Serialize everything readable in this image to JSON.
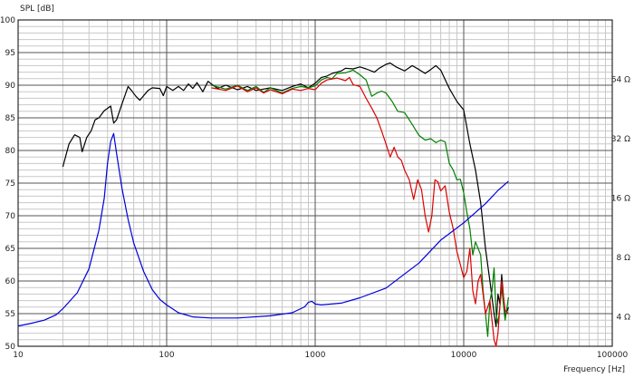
{
  "chart_data": {
    "type": "line",
    "ylabel": "SPL [dB]",
    "xlabel": "Frequency [Hz]",
    "xscale": "log",
    "xlim": [
      10,
      100000
    ],
    "ylim": [
      50,
      100
    ],
    "x_ticks": [
      {
        "value": 10,
        "label": "10"
      },
      {
        "value": 100,
        "label": "100"
      },
      {
        "value": 1000,
        "label": "1000"
      },
      {
        "value": 10000,
        "label": "10000"
      },
      {
        "value": 100000,
        "label": "100000"
      }
    ],
    "y_ticks": [
      50,
      55,
      60,
      65,
      70,
      75,
      80,
      85,
      90,
      95,
      100
    ],
    "y2_ticks": [
      {
        "value": 4,
        "label": "4 Ω"
      },
      {
        "value": 8,
        "label": "8 Ω"
      },
      {
        "value": 16,
        "label": "16 Ω"
      },
      {
        "value": 32,
        "label": "32 Ω"
      },
      {
        "value": 64,
        "label": "64 Ω"
      }
    ],
    "y2scale": "log",
    "y2lim": [
      2.84,
      128
    ],
    "grid": true,
    "series": [
      {
        "color": "#000000",
        "axis": "left",
        "points": [
          [
            20,
            77.5
          ],
          [
            22,
            81
          ],
          [
            24,
            82.4
          ],
          [
            26,
            82
          ],
          [
            27,
            79.8
          ],
          [
            29,
            82
          ],
          [
            31,
            83
          ],
          [
            33,
            84.7
          ],
          [
            35,
            85
          ],
          [
            38,
            86.1
          ],
          [
            42,
            86.8
          ],
          [
            44,
            84.2
          ],
          [
            46,
            84.7
          ],
          [
            50,
            87.1
          ],
          [
            55,
            89.8
          ],
          [
            58,
            89.2
          ],
          [
            62,
            88.3
          ],
          [
            66,
            87.7
          ],
          [
            70,
            88.4
          ],
          [
            75,
            89.2
          ],
          [
            80,
            89.6
          ],
          [
            90,
            89.5
          ],
          [
            95,
            88.4
          ],
          [
            100,
            89.8
          ],
          [
            110,
            89.2
          ],
          [
            120,
            89.8
          ],
          [
            130,
            89.2
          ],
          [
            140,
            90.2
          ],
          [
            150,
            89.5
          ],
          [
            160,
            90.4
          ],
          [
            175,
            89.0
          ],
          [
            190,
            90.6
          ],
          [
            200,
            90.2
          ],
          [
            220,
            89.5
          ],
          [
            250,
            90.0
          ],
          [
            300,
            89.3
          ],
          [
            350,
            89.8
          ],
          [
            400,
            89.2
          ],
          [
            500,
            89.6
          ],
          [
            600,
            89.2
          ],
          [
            700,
            89.8
          ],
          [
            800,
            90.2
          ],
          [
            900,
            89.6
          ],
          [
            1000,
            90.3
          ],
          [
            1100,
            91.2
          ],
          [
            1200,
            91.4
          ],
          [
            1300,
            91.8
          ],
          [
            1400,
            92.0
          ],
          [
            1500,
            92.2
          ],
          [
            1600,
            92.6
          ],
          [
            1800,
            92.5
          ],
          [
            2000,
            92.8
          ],
          [
            2200,
            92.5
          ],
          [
            2500,
            92.0
          ],
          [
            2700,
            92.6
          ],
          [
            3000,
            93.2
          ],
          [
            3200,
            93.4
          ],
          [
            3500,
            92.8
          ],
          [
            4000,
            92.2
          ],
          [
            4500,
            93.0
          ],
          [
            5000,
            92.4
          ],
          [
            5500,
            91.8
          ],
          [
            6000,
            92.4
          ],
          [
            6500,
            93.0
          ],
          [
            7000,
            92.3
          ],
          [
            8000,
            89.5
          ],
          [
            9000,
            87.5
          ],
          [
            10000,
            86.2
          ],
          [
            11000,
            81.0
          ],
          [
            12000,
            77.0
          ],
          [
            13000,
            72.0
          ],
          [
            14000,
            65.0
          ],
          [
            15000,
            60.0
          ],
          [
            16000,
            55.0
          ],
          [
            16500,
            53.0
          ],
          [
            17000,
            58.0
          ],
          [
            17500,
            56.5
          ],
          [
            18000,
            61.0
          ],
          [
            19000,
            54.5
          ],
          [
            20000,
            56.0
          ]
        ]
      },
      {
        "color": "#008000",
        "axis": "left",
        "points": [
          [
            200,
            90.0
          ],
          [
            250,
            89.4
          ],
          [
            300,
            90.0
          ],
          [
            350,
            89.2
          ],
          [
            400,
            89.8
          ],
          [
            450,
            88.9
          ],
          [
            500,
            89.6
          ],
          [
            600,
            88.8
          ],
          [
            700,
            89.5
          ],
          [
            800,
            89.8
          ],
          [
            900,
            89.6
          ],
          [
            1000,
            89.9
          ],
          [
            1100,
            90.8
          ],
          [
            1200,
            91.2
          ],
          [
            1300,
            91.0
          ],
          [
            1400,
            91.8
          ],
          [
            1600,
            91.9
          ],
          [
            1800,
            92.3
          ],
          [
            2000,
            91.6
          ],
          [
            2200,
            90.8
          ],
          [
            2400,
            88.3
          ],
          [
            2600,
            88.8
          ],
          [
            2800,
            89.1
          ],
          [
            3000,
            88.8
          ],
          [
            3300,
            87.5
          ],
          [
            3600,
            86.0
          ],
          [
            4000,
            85.8
          ],
          [
            4500,
            84.0
          ],
          [
            5000,
            82.3
          ],
          [
            5500,
            81.6
          ],
          [
            6000,
            81.8
          ],
          [
            6500,
            81.2
          ],
          [
            7000,
            81.6
          ],
          [
            7500,
            81.3
          ],
          [
            8000,
            78.0
          ],
          [
            8500,
            77.0
          ],
          [
            9000,
            75.5
          ],
          [
            9500,
            75.6
          ],
          [
            10000,
            73.5
          ],
          [
            10500,
            70.5
          ],
          [
            11000,
            68.0
          ],
          [
            11500,
            64.0
          ],
          [
            12000,
            66.0
          ],
          [
            13000,
            64.0
          ],
          [
            13500,
            58.5
          ],
          [
            14000,
            55.0
          ],
          [
            14500,
            51.5
          ],
          [
            15000,
            57.0
          ],
          [
            15500,
            58.5
          ],
          [
            16000,
            62.0
          ],
          [
            16500,
            55.0
          ],
          [
            17000,
            53.5
          ],
          [
            17500,
            56.0
          ],
          [
            18000,
            59.0
          ],
          [
            19000,
            54.0
          ],
          [
            20000,
            57.5
          ]
        ]
      },
      {
        "color": "#dd0000",
        "axis": "left",
        "points": [
          [
            200,
            89.6
          ],
          [
            250,
            89.2
          ],
          [
            300,
            89.9
          ],
          [
            350,
            89.0
          ],
          [
            400,
            89.6
          ],
          [
            450,
            88.8
          ],
          [
            500,
            89.3
          ],
          [
            600,
            88.7
          ],
          [
            700,
            89.4
          ],
          [
            800,
            89.2
          ],
          [
            900,
            89.5
          ],
          [
            1000,
            89.3
          ],
          [
            1100,
            90.3
          ],
          [
            1200,
            90.8
          ],
          [
            1400,
            91.1
          ],
          [
            1600,
            90.7
          ],
          [
            1700,
            91.2
          ],
          [
            1800,
            90.1
          ],
          [
            2000,
            89.8
          ],
          [
            2200,
            88.0
          ],
          [
            2400,
            86.5
          ],
          [
            2600,
            85.0
          ],
          [
            2800,
            83.0
          ],
          [
            3000,
            81.0
          ],
          [
            3200,
            79.0
          ],
          [
            3400,
            80.5
          ],
          [
            3600,
            79.0
          ],
          [
            3800,
            78.5
          ],
          [
            4000,
            77.0
          ],
          [
            4300,
            75.5
          ],
          [
            4600,
            72.5
          ],
          [
            4900,
            75.5
          ],
          [
            5200,
            74.0
          ],
          [
            5500,
            70.0
          ],
          [
            5800,
            67.5
          ],
          [
            6100,
            70.0
          ],
          [
            6400,
            75.5
          ],
          [
            6700,
            75.2
          ],
          [
            7000,
            73.8
          ],
          [
            7500,
            74.6
          ],
          [
            8000,
            70.5
          ],
          [
            8500,
            68.0
          ],
          [
            9000,
            64.5
          ],
          [
            9500,
            62.5
          ],
          [
            10000,
            60.5
          ],
          [
            10500,
            61.5
          ],
          [
            11000,
            65.0
          ],
          [
            11500,
            58.5
          ],
          [
            12000,
            56.5
          ],
          [
            12500,
            60.0
          ],
          [
            13000,
            61.0
          ],
          [
            14000,
            55.0
          ],
          [
            15000,
            57.0
          ],
          [
            16000,
            51.0
          ],
          [
            16500,
            50.0
          ],
          [
            17000,
            52.0
          ],
          [
            18000,
            60.0
          ],
          [
            19000,
            55.5
          ],
          [
            20000,
            55.0
          ]
        ]
      },
      {
        "color": "#0000dd",
        "axis": "right",
        "points": [
          [
            10,
            3.6
          ],
          [
            12,
            3.7
          ],
          [
            15,
            3.85
          ],
          [
            18,
            4.1
          ],
          [
            20,
            4.4
          ],
          [
            25,
            5.3
          ],
          [
            30,
            7.0
          ],
          [
            35,
            11.0
          ],
          [
            38,
            16.0
          ],
          [
            40,
            24.0
          ],
          [
            42,
            31.0
          ],
          [
            44,
            34.0
          ],
          [
            46,
            27.0
          ],
          [
            50,
            18.0
          ],
          [
            55,
            12.5
          ],
          [
            60,
            9.5
          ],
          [
            70,
            6.8
          ],
          [
            80,
            5.5
          ],
          [
            90,
            4.9
          ],
          [
            100,
            4.6
          ],
          [
            120,
            4.2
          ],
          [
            150,
            4.0
          ],
          [
            200,
            3.95
          ],
          [
            300,
            3.95
          ],
          [
            500,
            4.05
          ],
          [
            700,
            4.2
          ],
          [
            850,
            4.5
          ],
          [
            900,
            4.75
          ],
          [
            950,
            4.8
          ],
          [
            1000,
            4.65
          ],
          [
            1100,
            4.6
          ],
          [
            1500,
            4.7
          ],
          [
            2000,
            5.0
          ],
          [
            3000,
            5.6
          ],
          [
            5000,
            7.5
          ],
          [
            7000,
            9.8
          ],
          [
            10000,
            12.0
          ],
          [
            14000,
            15.0
          ],
          [
            17000,
            17.5
          ],
          [
            20000,
            19.5
          ]
        ]
      }
    ]
  }
}
